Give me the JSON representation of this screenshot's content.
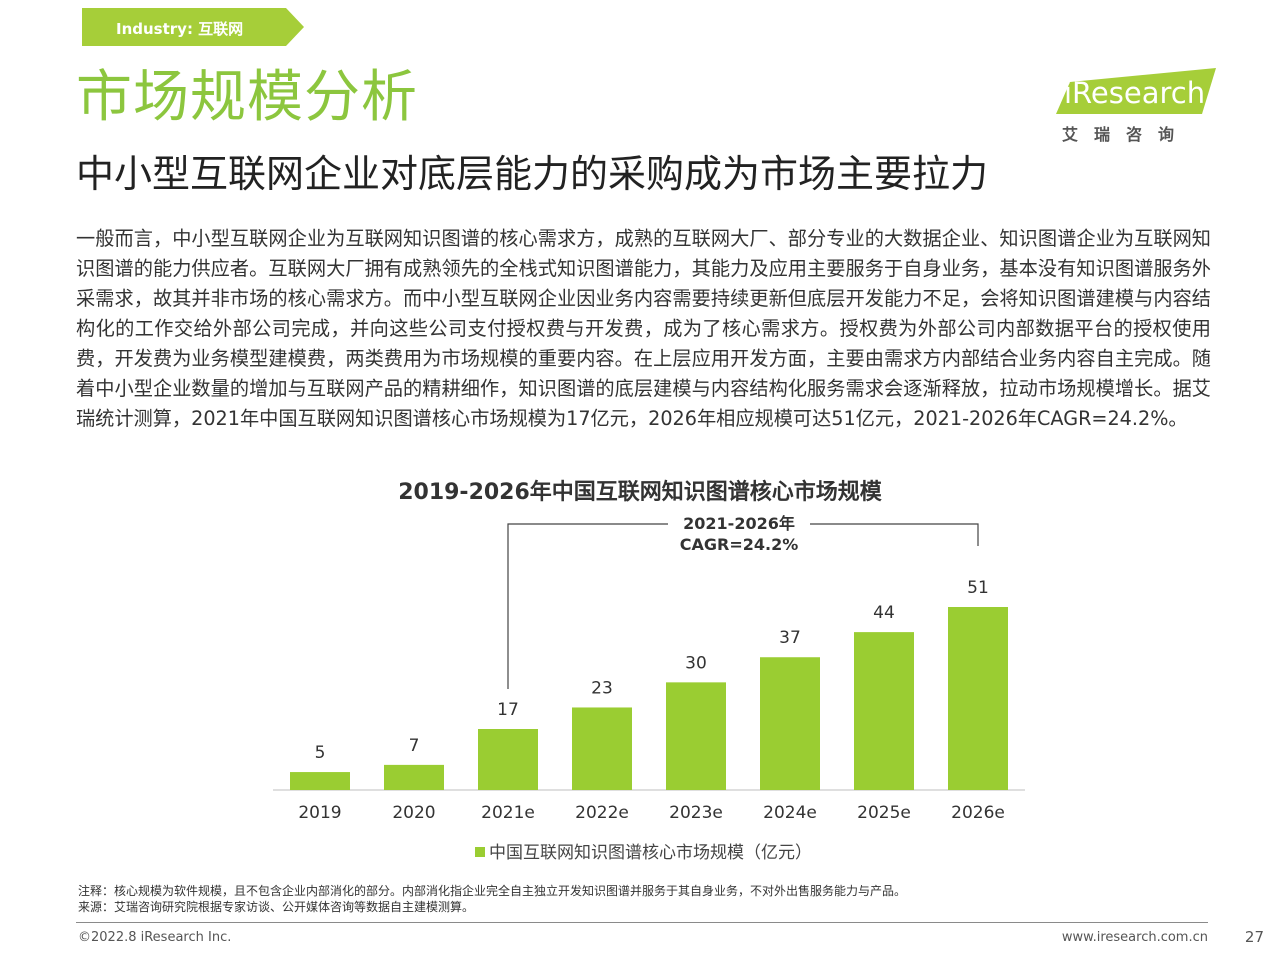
{
  "tag": {
    "label": "Industry:  互联网"
  },
  "header": {
    "title": "市场规模分析",
    "subtitle": "中小型互联网企业对底层能力的采购成为市场主要拉力"
  },
  "logo": {
    "word": "iResearch",
    "cn": "艾瑞咨询"
  },
  "body": {
    "paragraph": "一般而言，中小型互联网企业为互联网知识图谱的核心需求方，成熟的互联网大厂、部分专业的大数据企业、知识图谱企业为互联网知识图谱的能力供应者。互联网大厂拥有成熟领先的全栈式知识图谱能力，其能力及应用主要服务于自身业务，基本没有知识图谱服务外采需求，故其并非市场的核心需求方。而中小型互联网企业因业务内容需要持续更新但底层开发能力不足，会将知识图谱建模与内容结构化的工作交给外部公司完成，并向这些公司支付授权费与开发费，成为了核心需求方。授权费为外部公司内部数据平台的授权使用费，开发费为业务模型建模费，两类费用为市场规模的重要内容。在上层应用开发方面，主要由需求方内部结合业务内容自主完成。随着中小型企业数量的增加与互联网产品的精耕细作，知识图谱的底层建模与内容结构化服务需求会逐渐释放，拉动市场规模增长。据艾瑞统计测算，2021年中国互联网知识图谱核心市场规模为17亿元，2026年相应规模可达51亿元，2021-2026年CAGR=24.2%。"
  },
  "chart_data": {
    "type": "bar",
    "title": "2019-2026年中国互联网知识图谱核心市场规模",
    "categories": [
      "2019",
      "2020",
      "2021e",
      "2022e",
      "2023e",
      "2024e",
      "2025e",
      "2026e"
    ],
    "series": [
      {
        "name": "中国互联网知识图谱核心市场规模（亿元）",
        "values": [
          5,
          7,
          17,
          23,
          30,
          37,
          44,
          51
        ]
      }
    ],
    "annotation": {
      "line1": "2021-2026年",
      "line2": "CAGR=24.2%",
      "from": "2021e",
      "to": "2026e"
    },
    "ylim": [
      0,
      51
    ],
    "bar_color": "#9acd32",
    "grid": false,
    "legend": "bottom"
  },
  "footer": {
    "note": "注释：核心规模为软件规模，且不包含企业内部消化的部分。内部消化指企业完全自主独立开发知识图谱并服务于其自身业务，不对外出售服务能力与产品。",
    "source": "来源：艾瑞咨询研究院根据专家访谈、公开媒体咨询等数据自主建模测算。",
    "copyright": "©2022.8 iResearch Inc.",
    "url": "www.iresearch.com.cn",
    "page": "27"
  }
}
